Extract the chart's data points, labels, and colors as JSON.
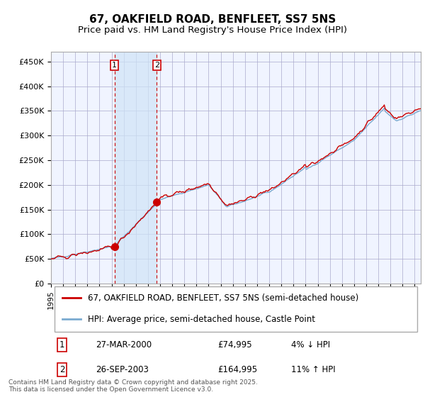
{
  "title": "67, OAKFIELD ROAD, BENFLEET, SS7 5NS",
  "subtitle": "Price paid vs. HM Land Registry's House Price Index (HPI)",
  "red_label": "67, OAKFIELD ROAD, BENFLEET, SS7 5NS (semi-detached house)",
  "blue_label": "HPI: Average price, semi-detached house, Castle Point",
  "transaction1_date": "27-MAR-2000",
  "transaction1_price": 74995,
  "transaction1_hpi": "4% ↓ HPI",
  "transaction2_date": "26-SEP-2003",
  "transaction2_price": 164995,
  "transaction2_hpi": "11% ↑ HPI",
  "t1_year": 2000.23,
  "t2_year": 2003.73,
  "ylim_min": 0,
  "ylim_max": 470000,
  "xlim_min": 1995,
  "xlim_max": 2025.5,
  "background_color": "#ffffff",
  "plot_bg_color": "#f0f4ff",
  "grid_color": "#aaaacc",
  "red_color": "#cc0000",
  "blue_color": "#7aaad0",
  "shade_color": "#d0e4f7",
  "dashed_color": "#cc0000",
  "footer_text": "Contains HM Land Registry data © Crown copyright and database right 2025.\nThis data is licensed under the Open Government Licence v3.0.",
  "ytick_labels": [
    "£0",
    "£50K",
    "£100K",
    "£150K",
    "£200K",
    "£250K",
    "£300K",
    "£350K",
    "£400K",
    "£450K"
  ],
  "ytick_values": [
    0,
    50000,
    100000,
    150000,
    200000,
    250000,
    300000,
    350000,
    400000,
    450000
  ]
}
